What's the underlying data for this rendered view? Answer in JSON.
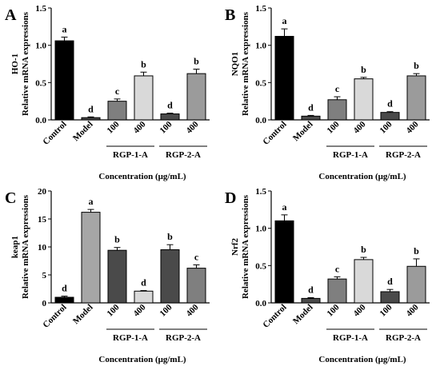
{
  "chart_data": [
    {
      "type": "bar",
      "panel_label": "A",
      "ylabel_gene": "HO-1",
      "ylabel": "Relative mRNA expressions",
      "xlabel": "Concentration (μg/mL)",
      "ylim": [
        0,
        1.5
      ],
      "yticks": [
        "0.0",
        "0.5",
        "1.0",
        "1.5"
      ],
      "categories": [
        "Control",
        "Model",
        "100",
        "400",
        "100",
        "400"
      ],
      "groups": [
        {
          "label": "RGP-1-A",
          "members": [
            2,
            3
          ]
        },
        {
          "label": "RGP-2-A",
          "members": [
            4,
            5
          ]
        }
      ],
      "values": [
        1.06,
        0.03,
        0.25,
        0.59,
        0.08,
        0.62
      ],
      "errors": [
        0.05,
        0.01,
        0.03,
        0.05,
        0.01,
        0.06
      ],
      "letters": [
        "a",
        "d",
        "c",
        "b",
        "d",
        "b"
      ],
      "bar_colors": [
        "#000000",
        "#4a4a4a",
        "#7f7f7f",
        "#d9d9d9",
        "#4a4a4a",
        "#9b9b9b"
      ]
    },
    {
      "type": "bar",
      "panel_label": "B",
      "ylabel_gene": "NQO1",
      "ylabel": "Relative mRNA expressions",
      "xlabel": "Concentration (μg/mL)",
      "ylim": [
        0,
        1.5
      ],
      "yticks": [
        "0.0",
        "0.5",
        "1.0",
        "1.5"
      ],
      "categories": [
        "Control",
        "Model",
        "100",
        "400",
        "100",
        "400"
      ],
      "groups": [
        {
          "label": "RGP-1-A",
          "members": [
            2,
            3
          ]
        },
        {
          "label": "RGP-2-A",
          "members": [
            4,
            5
          ]
        }
      ],
      "values": [
        1.12,
        0.05,
        0.27,
        0.55,
        0.1,
        0.59
      ],
      "errors": [
        0.1,
        0.01,
        0.04,
        0.02,
        0.01,
        0.03
      ],
      "letters": [
        "a",
        "d",
        "c",
        "b",
        "d",
        "b"
      ],
      "bar_colors": [
        "#000000",
        "#4a4a4a",
        "#7f7f7f",
        "#d9d9d9",
        "#4a4a4a",
        "#9b9b9b"
      ]
    },
    {
      "type": "bar",
      "panel_label": "C",
      "ylabel_gene": "keap1",
      "ylabel": "Relative mRNA expressions",
      "xlabel": "Concentration (μg/mL)",
      "ylim": [
        0,
        20
      ],
      "yticks": [
        "0",
        "5",
        "10",
        "15",
        "20"
      ],
      "categories": [
        "Control",
        "Model",
        "100",
        "400",
        "100",
        "400"
      ],
      "groups": [
        {
          "label": "RGP-1-A",
          "members": [
            2,
            3
          ]
        },
        {
          "label": "RGP-2-A",
          "members": [
            4,
            5
          ]
        }
      ],
      "values": [
        1.0,
        16.2,
        9.4,
        2.1,
        9.5,
        6.2
      ],
      "errors": [
        0.2,
        0.5,
        0.5,
        0.1,
        0.9,
        0.6
      ],
      "letters": [
        "d",
        "a",
        "b",
        "d",
        "b",
        "c"
      ],
      "bar_colors": [
        "#000000",
        "#a6a6a6",
        "#4a4a4a",
        "#d9d9d9",
        "#4a4a4a",
        "#7f7f7f"
      ]
    },
    {
      "type": "bar",
      "panel_label": "D",
      "ylabel_gene": "Nrf2",
      "ylabel": "Relative mRNA expressions",
      "xlabel": "Concentration (μg/mL)",
      "ylim": [
        0,
        1.5
      ],
      "yticks": [
        "0.0",
        "0.5",
        "1.0",
        "1.5"
      ],
      "categories": [
        "Control",
        "Model",
        "100",
        "400",
        "100",
        "400"
      ],
      "groups": [
        {
          "label": "RGP-1-A",
          "members": [
            2,
            3
          ]
        },
        {
          "label": "RGP-2-A",
          "members": [
            4,
            5
          ]
        }
      ],
      "values": [
        1.1,
        0.06,
        0.32,
        0.58,
        0.15,
        0.49
      ],
      "errors": [
        0.08,
        0.01,
        0.03,
        0.03,
        0.03,
        0.1
      ],
      "letters": [
        "a",
        "d",
        "c",
        "b",
        "d",
        "b"
      ],
      "bar_colors": [
        "#000000",
        "#4a4a4a",
        "#7f7f7f",
        "#d9d9d9",
        "#4a4a4a",
        "#9b9b9b"
      ]
    }
  ]
}
